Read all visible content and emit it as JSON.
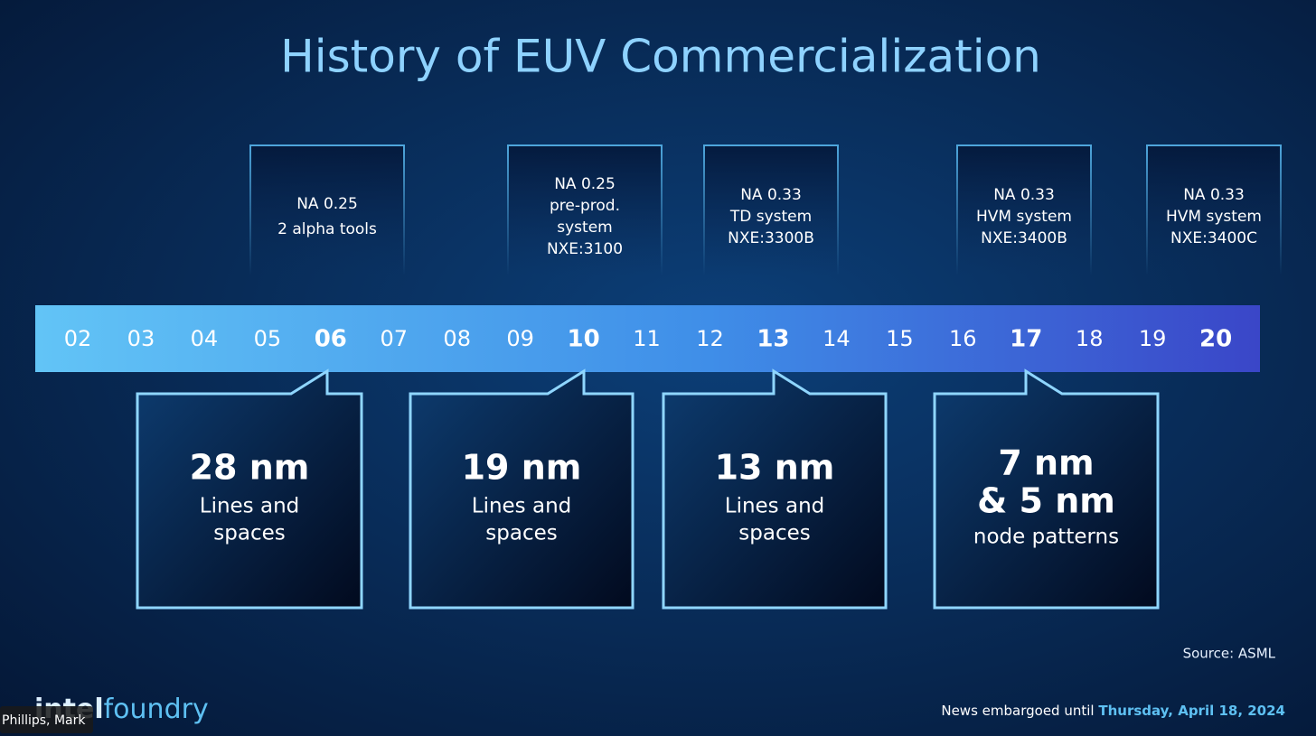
{
  "header": {
    "title": "History of EUV Commercialization"
  },
  "timeline": {
    "years": [
      {
        "label": "02",
        "bold": false
      },
      {
        "label": "03",
        "bold": false
      },
      {
        "label": "04",
        "bold": false
      },
      {
        "label": "05",
        "bold": false
      },
      {
        "label": "06",
        "bold": true
      },
      {
        "label": "07",
        "bold": false
      },
      {
        "label": "08",
        "bold": false
      },
      {
        "label": "09",
        "bold": false
      },
      {
        "label": "10",
        "bold": true
      },
      {
        "label": "11",
        "bold": false
      },
      {
        "label": "12",
        "bold": false
      },
      {
        "label": "13",
        "bold": true
      },
      {
        "label": "14",
        "bold": false
      },
      {
        "label": "15",
        "bold": false
      },
      {
        "label": "16",
        "bold": false
      },
      {
        "label": "17",
        "bold": true
      },
      {
        "label": "18",
        "bold": false
      },
      {
        "label": "19",
        "bold": false
      },
      {
        "label": "20",
        "bold": true
      }
    ]
  },
  "systems": [
    {
      "lines": [
        "NA 0.25",
        "2 alpha tools"
      ]
    },
    {
      "lines": [
        "NA 0.25",
        "pre-prod.",
        "system",
        "NXE:3100"
      ]
    },
    {
      "lines": [
        "NA 0.33",
        "TD system",
        "NXE:3300B"
      ]
    },
    {
      "lines": [
        "NA 0.33",
        "HVM system",
        "NXE:3400B"
      ]
    },
    {
      "lines": [
        "NA 0.33",
        "HVM system",
        "NXE:3400C"
      ]
    }
  ],
  "resolutions": [
    {
      "headline": [
        "28 nm"
      ],
      "body": [
        "Lines and",
        "spaces"
      ]
    },
    {
      "headline": [
        "19 nm"
      ],
      "body": [
        "Lines and",
        "spaces"
      ]
    },
    {
      "headline": [
        "13 nm"
      ],
      "body": [
        "Lines and",
        "spaces"
      ]
    },
    {
      "headline": [
        "7 nm",
        "& 5 nm"
      ],
      "body": [
        "node patterns"
      ]
    }
  ],
  "footer": {
    "source": "Source: ASML",
    "logo": {
      "brand": "intel",
      "product": "foundry"
    },
    "embargo": {
      "prefix": "News embargoed until",
      "date": "Thursday, April 18, 2024"
    },
    "participant": "Phillips, Mark"
  }
}
